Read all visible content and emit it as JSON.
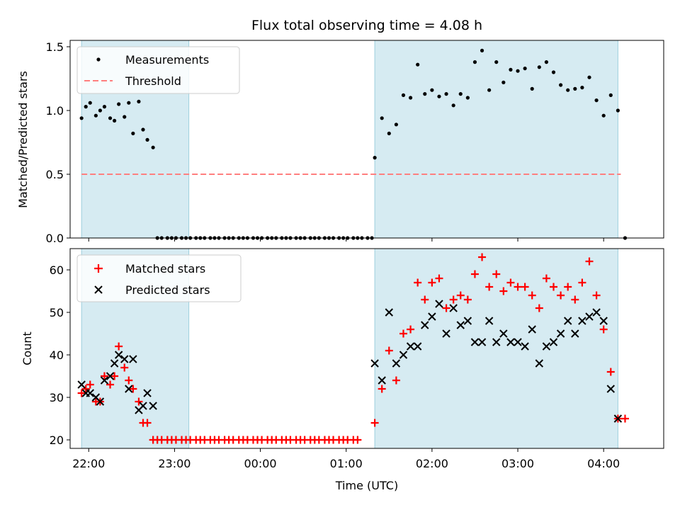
{
  "chart_data": [
    {
      "type": "scatter",
      "title": "Flux total observing time = 4.08 h",
      "ylabel": "Matched/Predicted stars",
      "xlim": [
        "21:47",
        "04:42"
      ],
      "ylim": [
        0,
        1.55
      ],
      "yticks": [
        "0.0",
        "0.5",
        "1.0",
        "1.5"
      ],
      "observing_windows": [
        [
          "21:55",
          "23:10"
        ],
        [
          "01:20",
          "04:10"
        ]
      ],
      "legend": {
        "position": "upper-left",
        "entries": [
          "Measurements",
          "Threshold"
        ]
      },
      "threshold": {
        "name": "Threshold",
        "value": 0.5,
        "x_start": "21:55",
        "x_end": "04:12",
        "color": "#ff7f7f"
      },
      "series": [
        {
          "name": "Measurements",
          "color": "#000000",
          "points": [
            [
              "21:55",
              0.94
            ],
            [
              "21:58",
              1.03
            ],
            [
              "22:01",
              1.06
            ],
            [
              "22:05",
              0.96
            ],
            [
              "22:08",
              1.0
            ],
            [
              "22:11",
              1.03
            ],
            [
              "22:15",
              0.94
            ],
            [
              "22:18",
              0.92
            ],
            [
              "22:21",
              1.05
            ],
            [
              "22:25",
              0.95
            ],
            [
              "22:28",
              1.06
            ],
            [
              "22:31",
              0.82
            ],
            [
              "22:35",
              1.07
            ],
            [
              "22:38",
              0.85
            ],
            [
              "22:41",
              0.77
            ],
            [
              "22:45",
              0.71
            ],
            [
              "22:48",
              0
            ],
            [
              "22:51",
              0
            ],
            [
              "22:55",
              0
            ],
            [
              "22:58",
              0
            ],
            [
              "23:01",
              0
            ],
            [
              "23:05",
              0
            ],
            [
              "23:08",
              0
            ],
            [
              "23:11",
              0
            ],
            [
              "23:15",
              0
            ],
            [
              "23:18",
              0
            ],
            [
              "23:21",
              0
            ],
            [
              "23:25",
              0
            ],
            [
              "23:28",
              0
            ],
            [
              "23:31",
              0
            ],
            [
              "23:35",
              0
            ],
            [
              "23:38",
              0
            ],
            [
              "23:41",
              0
            ],
            [
              "23:45",
              0
            ],
            [
              "23:48",
              0
            ],
            [
              "23:51",
              0
            ],
            [
              "23:55",
              0
            ],
            [
              "23:58",
              0
            ],
            [
              "00:01",
              0
            ],
            [
              "00:05",
              0
            ],
            [
              "00:08",
              0
            ],
            [
              "00:11",
              0
            ],
            [
              "00:15",
              0
            ],
            [
              "00:18",
              0
            ],
            [
              "00:21",
              0
            ],
            [
              "00:25",
              0
            ],
            [
              "00:28",
              0
            ],
            [
              "00:31",
              0
            ],
            [
              "00:35",
              0
            ],
            [
              "00:38",
              0
            ],
            [
              "00:41",
              0
            ],
            [
              "00:45",
              0
            ],
            [
              "00:48",
              0
            ],
            [
              "00:51",
              0
            ],
            [
              "00:55",
              0
            ],
            [
              "00:58",
              0
            ],
            [
              "01:01",
              0
            ],
            [
              "01:05",
              0
            ],
            [
              "01:08",
              0
            ],
            [
              "01:11",
              0
            ],
            [
              "01:15",
              0
            ],
            [
              "01:18",
              0
            ],
            [
              "01:20",
              0.63
            ],
            [
              "01:25",
              0.94
            ],
            [
              "01:30",
              0.82
            ],
            [
              "01:35",
              0.89
            ],
            [
              "01:40",
              1.12
            ],
            [
              "01:45",
              1.1
            ],
            [
              "01:50",
              1.36
            ],
            [
              "01:55",
              1.13
            ],
            [
              "02:00",
              1.16
            ],
            [
              "02:05",
              1.11
            ],
            [
              "02:10",
              1.13
            ],
            [
              "02:15",
              1.04
            ],
            [
              "02:20",
              1.13
            ],
            [
              "02:25",
              1.1
            ],
            [
              "02:30",
              1.38
            ],
            [
              "02:35",
              1.47
            ],
            [
              "02:40",
              1.16
            ],
            [
              "02:45",
              1.38
            ],
            [
              "02:50",
              1.22
            ],
            [
              "02:55",
              1.32
            ],
            [
              "03:00",
              1.31
            ],
            [
              "03:05",
              1.33
            ],
            [
              "03:10",
              1.17
            ],
            [
              "03:15",
              1.34
            ],
            [
              "03:20",
              1.38
            ],
            [
              "03:25",
              1.3
            ],
            [
              "03:30",
              1.2
            ],
            [
              "03:35",
              1.16
            ],
            [
              "03:40",
              1.17
            ],
            [
              "03:45",
              1.18
            ],
            [
              "03:50",
              1.26
            ],
            [
              "03:55",
              1.08
            ],
            [
              "04:00",
              0.96
            ],
            [
              "04:05",
              1.12
            ],
            [
              "04:10",
              1.0
            ],
            [
              "04:15",
              0
            ]
          ]
        }
      ]
    },
    {
      "type": "scatter",
      "title": "",
      "xlabel": "Time (UTC)",
      "ylabel": "Count",
      "xlim": [
        "21:47",
        "04:42"
      ],
      "ylim": [
        18,
        65
      ],
      "xticks": [
        "22:00",
        "23:00",
        "00:00",
        "01:00",
        "02:00",
        "03:00",
        "04:00"
      ],
      "yticks": [
        "20",
        "30",
        "40",
        "50",
        "60"
      ],
      "observing_windows": [
        [
          "21:55",
          "23:10"
        ],
        [
          "01:20",
          "04:10"
        ]
      ],
      "legend": {
        "position": "upper-left",
        "entries": [
          "Matched stars",
          "Predicted stars"
        ]
      },
      "series": [
        {
          "name": "Matched stars",
          "marker": "plus",
          "color": "#ff0000",
          "points": [
            [
              "21:55",
              31
            ],
            [
              "21:58",
              32
            ],
            [
              "22:01",
              33
            ],
            [
              "22:05",
              29
            ],
            [
              "22:08",
              29
            ],
            [
              "22:11",
              35
            ],
            [
              "22:15",
              33
            ],
            [
              "22:18",
              35
            ],
            [
              "22:21",
              42
            ],
            [
              "22:25",
              37
            ],
            [
              "22:28",
              34
            ],
            [
              "22:31",
              32
            ],
            [
              "22:35",
              29
            ],
            [
              "22:38",
              24
            ],
            [
              "22:41",
              24
            ],
            [
              "22:45",
              20
            ],
            [
              "22:48",
              20
            ],
            [
              "22:51",
              20
            ],
            [
              "22:55",
              20
            ],
            [
              "22:58",
              20
            ],
            [
              "23:01",
              20
            ],
            [
              "23:05",
              20
            ],
            [
              "23:08",
              20
            ],
            [
              "23:11",
              20
            ],
            [
              "23:15",
              20
            ],
            [
              "23:18",
              20
            ],
            [
              "23:21",
              20
            ],
            [
              "23:25",
              20
            ],
            [
              "23:28",
              20
            ],
            [
              "23:31",
              20
            ],
            [
              "23:35",
              20
            ],
            [
              "23:38",
              20
            ],
            [
              "23:41",
              20
            ],
            [
              "23:45",
              20
            ],
            [
              "23:48",
              20
            ],
            [
              "23:51",
              20
            ],
            [
              "23:55",
              20
            ],
            [
              "23:58",
              20
            ],
            [
              "00:01",
              20
            ],
            [
              "00:05",
              20
            ],
            [
              "00:08",
              20
            ],
            [
              "00:11",
              20
            ],
            [
              "00:15",
              20
            ],
            [
              "00:18",
              20
            ],
            [
              "00:21",
              20
            ],
            [
              "00:25",
              20
            ],
            [
              "00:28",
              20
            ],
            [
              "00:31",
              20
            ],
            [
              "00:35",
              20
            ],
            [
              "00:38",
              20
            ],
            [
              "00:41",
              20
            ],
            [
              "00:45",
              20
            ],
            [
              "00:48",
              20
            ],
            [
              "00:51",
              20
            ],
            [
              "00:55",
              20
            ],
            [
              "00:58",
              20
            ],
            [
              "01:01",
              20
            ],
            [
              "01:05",
              20
            ],
            [
              "01:08",
              20
            ],
            [
              "01:20",
              24
            ],
            [
              "01:25",
              32
            ],
            [
              "01:30",
              41
            ],
            [
              "01:35",
              34
            ],
            [
              "01:40",
              45
            ],
            [
              "01:45",
              46
            ],
            [
              "01:50",
              57
            ],
            [
              "01:55",
              53
            ],
            [
              "02:00",
              57
            ],
            [
              "02:05",
              58
            ],
            [
              "02:10",
              51
            ],
            [
              "02:15",
              53
            ],
            [
              "02:20",
              54
            ],
            [
              "02:25",
              53
            ],
            [
              "02:30",
              59
            ],
            [
              "02:35",
              63
            ],
            [
              "02:40",
              56
            ],
            [
              "02:45",
              59
            ],
            [
              "02:50",
              55
            ],
            [
              "02:55",
              57
            ],
            [
              "03:00",
              56
            ],
            [
              "03:05",
              56
            ],
            [
              "03:10",
              54
            ],
            [
              "03:15",
              51
            ],
            [
              "03:20",
              58
            ],
            [
              "03:25",
              56
            ],
            [
              "03:30",
              54
            ],
            [
              "03:35",
              56
            ],
            [
              "03:40",
              53
            ],
            [
              "03:45",
              57
            ],
            [
              "03:50",
              62
            ],
            [
              "03:55",
              54
            ],
            [
              "04:00",
              46
            ],
            [
              "04:05",
              36
            ],
            [
              "04:10",
              25
            ],
            [
              "04:15",
              25
            ]
          ]
        },
        {
          "name": "Predicted stars",
          "marker": "x",
          "color": "#000000",
          "points": [
            [
              "21:55",
              33
            ],
            [
              "21:58",
              31
            ],
            [
              "22:01",
              31
            ],
            [
              "22:05",
              30
            ],
            [
              "22:08",
              29
            ],
            [
              "22:11",
              34
            ],
            [
              "22:15",
              35
            ],
            [
              "22:18",
              38
            ],
            [
              "22:21",
              40
            ],
            [
              "22:25",
              39
            ],
            [
              "22:28",
              32
            ],
            [
              "22:31",
              39
            ],
            [
              "22:35",
              27
            ],
            [
              "22:38",
              28
            ],
            [
              "22:41",
              31
            ],
            [
              "22:45",
              28
            ],
            [
              "01:20",
              38
            ],
            [
              "01:25",
              34
            ],
            [
              "01:30",
              50
            ],
            [
              "01:35",
              38
            ],
            [
              "01:40",
              40
            ],
            [
              "01:45",
              42
            ],
            [
              "01:50",
              42
            ],
            [
              "01:55",
              47
            ],
            [
              "02:00",
              49
            ],
            [
              "02:05",
              52
            ],
            [
              "02:10",
              45
            ],
            [
              "02:15",
              51
            ],
            [
              "02:20",
              47
            ],
            [
              "02:25",
              48
            ],
            [
              "02:30",
              43
            ],
            [
              "02:35",
              43
            ],
            [
              "02:40",
              48
            ],
            [
              "02:45",
              43
            ],
            [
              "02:50",
              45
            ],
            [
              "02:55",
              43
            ],
            [
              "03:00",
              43
            ],
            [
              "03:05",
              42
            ],
            [
              "03:10",
              46
            ],
            [
              "03:15",
              38
            ],
            [
              "03:20",
              42
            ],
            [
              "03:25",
              43
            ],
            [
              "03:30",
              45
            ],
            [
              "03:35",
              48
            ],
            [
              "03:40",
              45
            ],
            [
              "03:45",
              48
            ],
            [
              "03:50",
              49
            ],
            [
              "03:55",
              50
            ],
            [
              "04:00",
              48
            ],
            [
              "04:05",
              32
            ],
            [
              "04:10",
              25
            ]
          ]
        }
      ]
    }
  ]
}
